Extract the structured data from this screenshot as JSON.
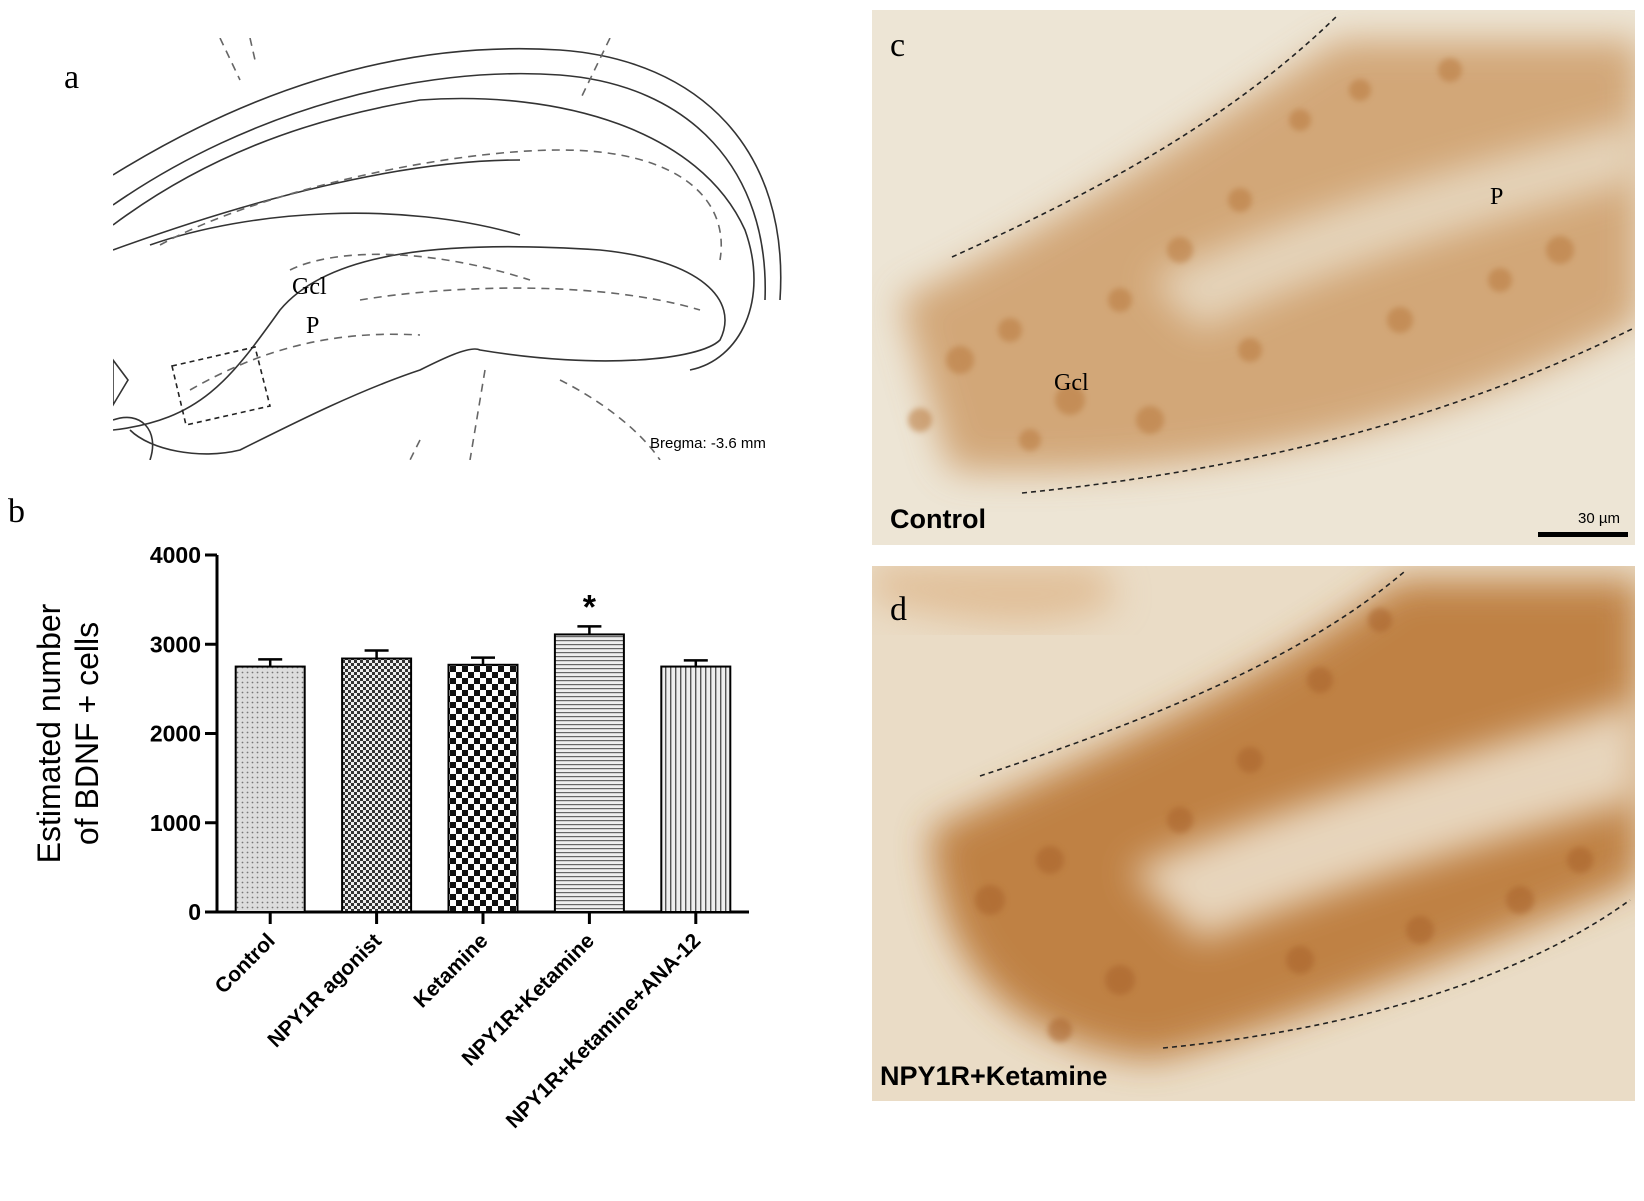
{
  "panels": {
    "a": {
      "label": "a",
      "region_labels": [
        "Gcl",
        "P"
      ],
      "bregma": "Bregma: -3.6 mm"
    },
    "b": {
      "label": "b"
    },
    "c": {
      "label": "c",
      "region_labels": [
        "P",
        "Gcl"
      ],
      "condition": "Control",
      "scale_bar": "30 µm"
    },
    "d": {
      "label": "d",
      "condition": "NPY1R+Ketamine"
    }
  },
  "chart_data": {
    "type": "bar",
    "ylabel": [
      "Estimated number",
      "of BDNF + cells"
    ],
    "categories": [
      "Control",
      "NPY1R agonist",
      "Ketamine",
      "NPY1R+Ketamine",
      "NPY1R+Ketamine+ANA-12"
    ],
    "values": [
      2750,
      2840,
      2770,
      3110,
      2750
    ],
    "errors": [
      80,
      90,
      80,
      90,
      70
    ],
    "annotations": [
      {
        "text": "*",
        "category": "NPY1R+Ketamine"
      }
    ],
    "ylim": [
      0,
      4000
    ],
    "yticks": [
      0,
      1000,
      2000,
      3000,
      4000
    ]
  }
}
